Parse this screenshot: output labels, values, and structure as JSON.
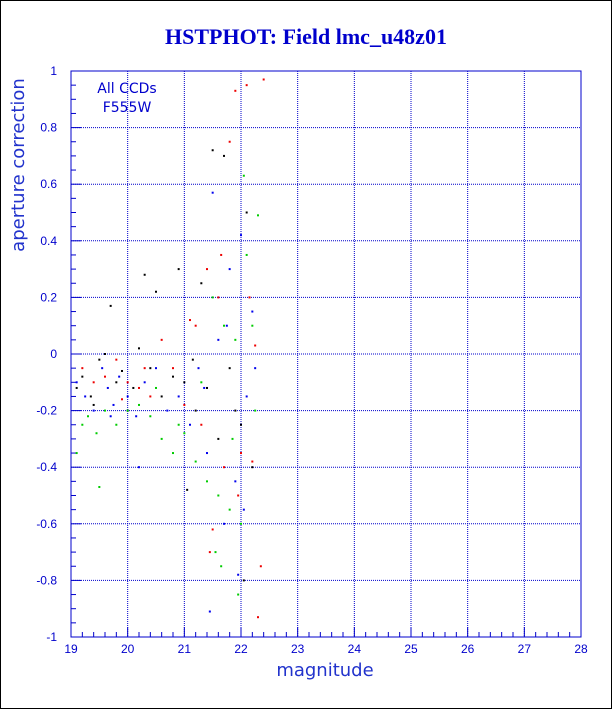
{
  "chart_data": {
    "type": "scatter",
    "title": "HSTPHOT: Field lmc_u48z01",
    "xlabel": "magnitude",
    "ylabel": "aperture correction",
    "xlim": [
      19,
      28
    ],
    "ylim": [
      -1,
      1
    ],
    "x_ticks": [
      19,
      20,
      21,
      22,
      23,
      24,
      25,
      26,
      27,
      28
    ],
    "y_ticks": [
      -1,
      -0.8,
      -0.6,
      -0.4,
      -0.2,
      0,
      0.2,
      0.4,
      0.6,
      0.8,
      1
    ],
    "y_tick_labels": [
      "-1",
      "-0.8",
      "-0.6",
      "-0.4",
      "-0.2",
      "0",
      "0.2",
      "0.4",
      "0.6",
      "0.8",
      "1"
    ],
    "grid": true,
    "annotations": [
      "All CCDs",
      "F555W"
    ],
    "series": [
      {
        "color": "#000000",
        "points": [
          [
            19.1,
            -0.12
          ],
          [
            19.2,
            -0.08
          ],
          [
            19.35,
            -0.15
          ],
          [
            19.5,
            -0.02
          ],
          [
            19.6,
            0.0
          ],
          [
            19.7,
            0.17
          ],
          [
            19.8,
            -0.1
          ],
          [
            19.9,
            -0.06
          ],
          [
            20.1,
            -0.12
          ],
          [
            20.2,
            0.02
          ],
          [
            20.3,
            0.28
          ],
          [
            20.4,
            -0.05
          ],
          [
            20.5,
            0.22
          ],
          [
            20.6,
            -0.15
          ],
          [
            20.8,
            -0.08
          ],
          [
            20.9,
            0.3
          ],
          [
            21.0,
            -0.1
          ],
          [
            21.05,
            -0.48
          ],
          [
            21.2,
            -0.2
          ],
          [
            21.3,
            0.25
          ],
          [
            21.4,
            -0.12
          ],
          [
            21.5,
            0.72
          ],
          [
            21.6,
            -0.3
          ],
          [
            21.7,
            0.7
          ],
          [
            21.8,
            -0.05
          ],
          [
            21.9,
            -0.2
          ],
          [
            22.0,
            -0.25
          ],
          [
            22.1,
            0.5
          ],
          [
            22.2,
            -0.4
          ],
          [
            20.0,
            -0.2
          ],
          [
            19.4,
            -0.18
          ],
          [
            21.15,
            -0.02
          ],
          [
            22.05,
            -0.8
          ]
        ]
      },
      {
        "color": "#0000ee",
        "points": [
          [
            19.1,
            -0.1
          ],
          [
            19.25,
            -0.15
          ],
          [
            19.4,
            -0.2
          ],
          [
            19.55,
            -0.05
          ],
          [
            19.65,
            -0.12
          ],
          [
            19.75,
            -0.18
          ],
          [
            19.85,
            -0.08
          ],
          [
            20.0,
            -0.15
          ],
          [
            20.15,
            -0.22
          ],
          [
            20.3,
            -0.1
          ],
          [
            20.5,
            -0.05
          ],
          [
            20.7,
            -0.2
          ],
          [
            20.9,
            -0.15
          ],
          [
            21.1,
            -0.25
          ],
          [
            21.25,
            -0.05
          ],
          [
            21.4,
            -0.35
          ],
          [
            21.5,
            0.57
          ],
          [
            21.6,
            0.05
          ],
          [
            21.7,
            -0.6
          ],
          [
            21.8,
            0.3
          ],
          [
            21.9,
            -0.45
          ],
          [
            22.0,
            0.42
          ],
          [
            22.1,
            -0.15
          ],
          [
            22.2,
            0.15
          ],
          [
            21.45,
            -0.91
          ],
          [
            22.05,
            -0.55
          ],
          [
            21.95,
            -0.78
          ],
          [
            20.2,
            -0.4
          ],
          [
            19.7,
            -0.22
          ],
          [
            21.35,
            -0.12
          ],
          [
            21.75,
            0.1
          ],
          [
            22.25,
            -0.05
          ]
        ]
      },
      {
        "color": "#00cc00",
        "points": [
          [
            19.2,
            -0.25
          ],
          [
            19.3,
            -0.22
          ],
          [
            19.45,
            -0.28
          ],
          [
            19.6,
            -0.2
          ],
          [
            19.8,
            -0.25
          ],
          [
            20.0,
            -0.2
          ],
          [
            20.2,
            -0.18
          ],
          [
            20.4,
            -0.22
          ],
          [
            20.6,
            -0.3
          ],
          [
            20.8,
            -0.35
          ],
          [
            21.0,
            -0.28
          ],
          [
            21.2,
            -0.38
          ],
          [
            21.3,
            -0.1
          ],
          [
            21.4,
            -0.45
          ],
          [
            21.5,
            0.2
          ],
          [
            21.6,
            -0.5
          ],
          [
            21.7,
            0.1
          ],
          [
            21.8,
            -0.55
          ],
          [
            21.9,
            0.05
          ],
          [
            22.0,
            -0.6
          ],
          [
            22.1,
            0.35
          ],
          [
            22.2,
            0.1
          ],
          [
            22.3,
            0.49
          ],
          [
            21.55,
            -0.7
          ],
          [
            21.65,
            -0.75
          ],
          [
            21.95,
            -0.85
          ],
          [
            22.05,
            0.63
          ],
          [
            19.5,
            -0.47
          ],
          [
            19.1,
            -0.35
          ],
          [
            20.9,
            -0.25
          ],
          [
            21.85,
            -0.3
          ],
          [
            22.25,
            -0.2
          ],
          [
            20.5,
            -0.12
          ]
        ]
      },
      {
        "color": "#ee0000",
        "points": [
          [
            19.2,
            -0.05
          ],
          [
            19.4,
            -0.1
          ],
          [
            19.6,
            -0.08
          ],
          [
            19.8,
            -0.02
          ],
          [
            20.0,
            -0.1
          ],
          [
            20.2,
            -0.12
          ],
          [
            20.4,
            -0.15
          ],
          [
            20.6,
            0.05
          ],
          [
            20.8,
            -0.05
          ],
          [
            21.0,
            -0.18
          ],
          [
            21.2,
            0.1
          ],
          [
            21.3,
            -0.25
          ],
          [
            21.4,
            0.3
          ],
          [
            21.5,
            -0.62
          ],
          [
            21.6,
            0.2
          ],
          [
            21.7,
            -0.4
          ],
          [
            21.8,
            0.75
          ],
          [
            21.9,
            0.93
          ],
          [
            22.0,
            -0.35
          ],
          [
            22.1,
            0.95
          ],
          [
            22.2,
            -0.38
          ],
          [
            22.3,
            -0.93
          ],
          [
            22.35,
            -0.75
          ],
          [
            22.4,
            0.97
          ],
          [
            21.45,
            -0.7
          ],
          [
            21.95,
            -0.5
          ],
          [
            22.15,
            0.2
          ],
          [
            20.3,
            -0.05
          ],
          [
            19.9,
            -0.16
          ],
          [
            21.1,
            0.12
          ],
          [
            21.65,
            0.35
          ],
          [
            22.25,
            0.03
          ]
        ]
      }
    ]
  }
}
